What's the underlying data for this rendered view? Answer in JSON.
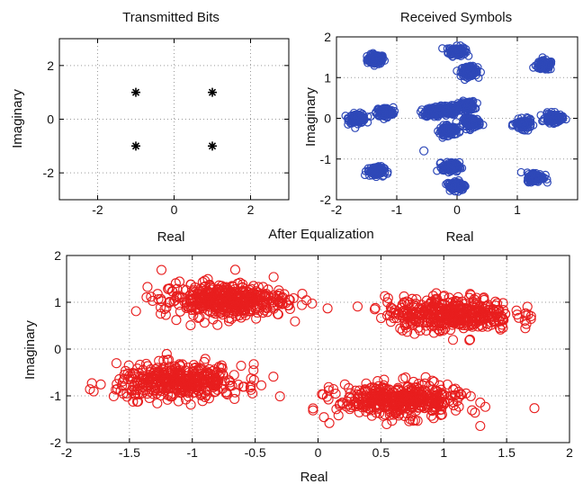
{
  "chart_data": [
    {
      "type": "scatter",
      "title": "Transmitted Bits",
      "xlabel": "Real",
      "ylabel": "Imaginary",
      "xlim": [
        -3,
        3
      ],
      "ylim": [
        -3,
        3
      ],
      "xticks": [
        -2,
        0,
        2
      ],
      "yticks": [
        -2,
        0,
        2
      ],
      "grid": true,
      "marker": "star",
      "color": "#000000",
      "series": [
        {
          "points": [
            [
              -1,
              1
            ],
            [
              1,
              1
            ],
            [
              -1,
              -1
            ],
            [
              1,
              -1
            ]
          ]
        }
      ]
    },
    {
      "type": "scatter",
      "title": "Received Symbols",
      "xlabel": "Real",
      "ylabel": "Imaginary",
      "xlim": [
        -2,
        2
      ],
      "ylim": [
        -2,
        2
      ],
      "xticks": [
        -2,
        -1,
        0,
        1
      ],
      "yticks": [
        -2,
        -1,
        0,
        1,
        2
      ],
      "grid": true,
      "marker": "circle",
      "color": "#2E48B8",
      "cluster_centers": [
        [
          -1.35,
          1.45
        ],
        [
          0.0,
          1.65
        ],
        [
          0.2,
          1.15
        ],
        [
          1.45,
          1.3
        ],
        [
          -1.65,
          0.0
        ],
        [
          -1.2,
          0.15
        ],
        [
          -0.4,
          0.15
        ],
        [
          -0.15,
          0.2
        ],
        [
          0.15,
          0.3
        ],
        [
          0.25,
          -0.1
        ],
        [
          -0.15,
          -0.3
        ],
        [
          1.1,
          -0.15
        ],
        [
          1.6,
          0.0
        ],
        [
          -1.35,
          -1.3
        ],
        [
          -0.1,
          -1.2
        ],
        [
          0.0,
          -1.65
        ],
        [
          1.3,
          -1.45
        ]
      ],
      "cluster_spread": 0.07,
      "outliers": [
        [
          -0.55,
          -0.8
        ],
        [
          -0.15,
          -1.6
        ]
      ]
    },
    {
      "type": "scatter",
      "title": "After Equalization",
      "xlabel": "Real",
      "ylabel": "Imaginary",
      "xlim": [
        -2,
        2
      ],
      "ylim": [
        -2,
        2
      ],
      "xticks": [
        -2,
        -1.5,
        -1,
        -0.5,
        0,
        0.5,
        1,
        1.5,
        2
      ],
      "yticks": [
        -2,
        -1,
        0,
        1,
        2
      ],
      "grid": true,
      "marker": "circle",
      "color": "#E81E1E",
      "cluster_centers": [
        [
          -0.75,
          1.05
        ],
        [
          1.05,
          0.75
        ],
        [
          -1.1,
          -0.7
        ],
        [
          0.65,
          -1.1
        ]
      ],
      "cluster_spread_x": 0.25,
      "cluster_spread_y": 0.18
    }
  ]
}
